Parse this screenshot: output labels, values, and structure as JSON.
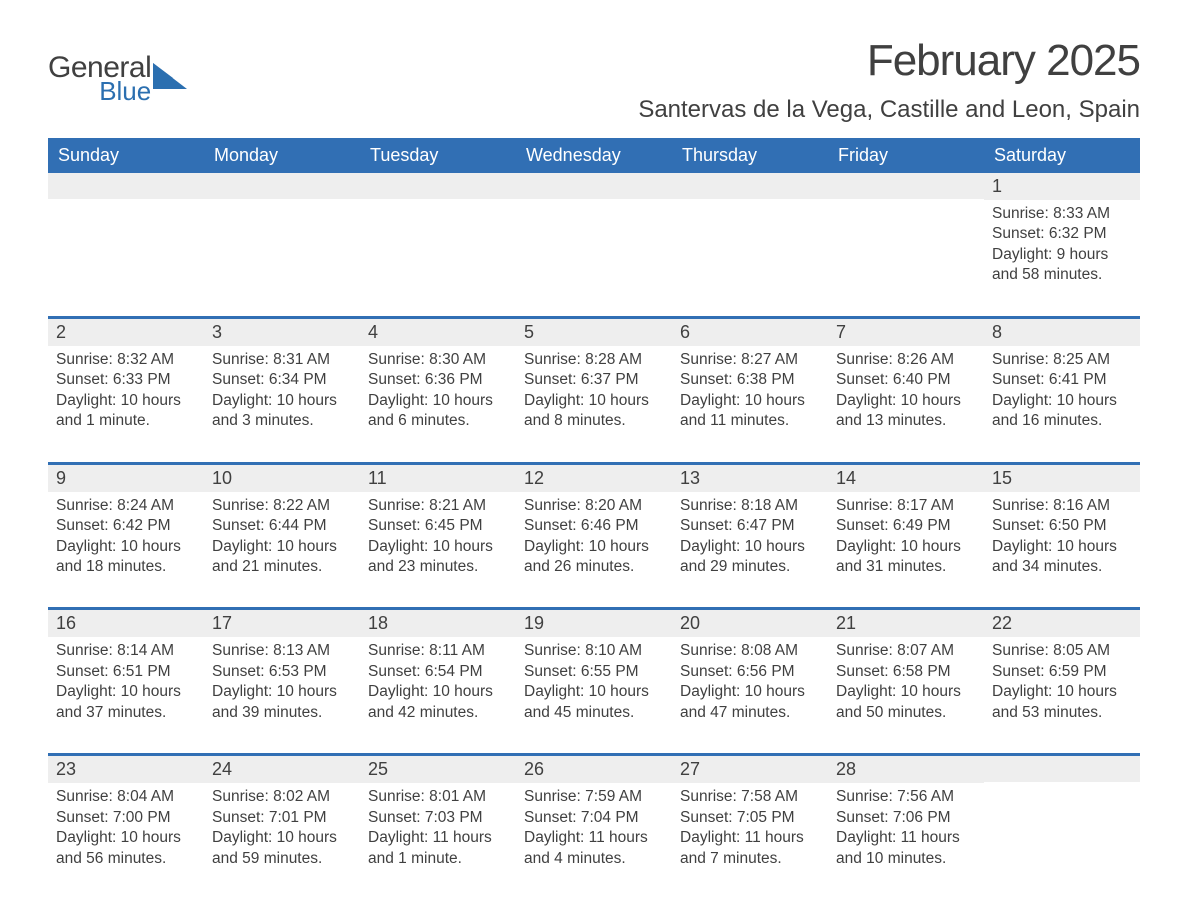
{
  "brand": {
    "general": "General",
    "blue": "Blue",
    "logo_color": "#2b6fb0"
  },
  "title": {
    "month": "February 2025",
    "location": "Santervas de la Vega, Castille and Leon, Spain"
  },
  "styling": {
    "header_bg": "#316fb4",
    "header_text": "#ffffff",
    "daybar_bg": "#eeeeee",
    "week_border": "#316fb4",
    "body_text": "#404040",
    "page_bg": "#ffffff",
    "month_title_fontsize": 44,
    "location_fontsize": 24,
    "weekday_fontsize": 18,
    "daynum_fontsize": 18,
    "cell_fontsize": 15.5
  },
  "weekdays": [
    "Sunday",
    "Monday",
    "Tuesday",
    "Wednesday",
    "Thursday",
    "Friday",
    "Saturday"
  ],
  "weeks": [
    [
      {
        "day": "",
        "sunrise": "",
        "sunset": "",
        "daylight": ""
      },
      {
        "day": "",
        "sunrise": "",
        "sunset": "",
        "daylight": ""
      },
      {
        "day": "",
        "sunrise": "",
        "sunset": "",
        "daylight": ""
      },
      {
        "day": "",
        "sunrise": "",
        "sunset": "",
        "daylight": ""
      },
      {
        "day": "",
        "sunrise": "",
        "sunset": "",
        "daylight": ""
      },
      {
        "day": "",
        "sunrise": "",
        "sunset": "",
        "daylight": ""
      },
      {
        "day": "1",
        "sunrise": "Sunrise: 8:33 AM",
        "sunset": "Sunset: 6:32 PM",
        "daylight": "Daylight: 9 hours and 58 minutes."
      }
    ],
    [
      {
        "day": "2",
        "sunrise": "Sunrise: 8:32 AM",
        "sunset": "Sunset: 6:33 PM",
        "daylight": "Daylight: 10 hours and 1 minute."
      },
      {
        "day": "3",
        "sunrise": "Sunrise: 8:31 AM",
        "sunset": "Sunset: 6:34 PM",
        "daylight": "Daylight: 10 hours and 3 minutes."
      },
      {
        "day": "4",
        "sunrise": "Sunrise: 8:30 AM",
        "sunset": "Sunset: 6:36 PM",
        "daylight": "Daylight: 10 hours and 6 minutes."
      },
      {
        "day": "5",
        "sunrise": "Sunrise: 8:28 AM",
        "sunset": "Sunset: 6:37 PM",
        "daylight": "Daylight: 10 hours and 8 minutes."
      },
      {
        "day": "6",
        "sunrise": "Sunrise: 8:27 AM",
        "sunset": "Sunset: 6:38 PM",
        "daylight": "Daylight: 10 hours and 11 minutes."
      },
      {
        "day": "7",
        "sunrise": "Sunrise: 8:26 AM",
        "sunset": "Sunset: 6:40 PM",
        "daylight": "Daylight: 10 hours and 13 minutes."
      },
      {
        "day": "8",
        "sunrise": "Sunrise: 8:25 AM",
        "sunset": "Sunset: 6:41 PM",
        "daylight": "Daylight: 10 hours and 16 minutes."
      }
    ],
    [
      {
        "day": "9",
        "sunrise": "Sunrise: 8:24 AM",
        "sunset": "Sunset: 6:42 PM",
        "daylight": "Daylight: 10 hours and 18 minutes."
      },
      {
        "day": "10",
        "sunrise": "Sunrise: 8:22 AM",
        "sunset": "Sunset: 6:44 PM",
        "daylight": "Daylight: 10 hours and 21 minutes."
      },
      {
        "day": "11",
        "sunrise": "Sunrise: 8:21 AM",
        "sunset": "Sunset: 6:45 PM",
        "daylight": "Daylight: 10 hours and 23 minutes."
      },
      {
        "day": "12",
        "sunrise": "Sunrise: 8:20 AM",
        "sunset": "Sunset: 6:46 PM",
        "daylight": "Daylight: 10 hours and 26 minutes."
      },
      {
        "day": "13",
        "sunrise": "Sunrise: 8:18 AM",
        "sunset": "Sunset: 6:47 PM",
        "daylight": "Daylight: 10 hours and 29 minutes."
      },
      {
        "day": "14",
        "sunrise": "Sunrise: 8:17 AM",
        "sunset": "Sunset: 6:49 PM",
        "daylight": "Daylight: 10 hours and 31 minutes."
      },
      {
        "day": "15",
        "sunrise": "Sunrise: 8:16 AM",
        "sunset": "Sunset: 6:50 PM",
        "daylight": "Daylight: 10 hours and 34 minutes."
      }
    ],
    [
      {
        "day": "16",
        "sunrise": "Sunrise: 8:14 AM",
        "sunset": "Sunset: 6:51 PM",
        "daylight": "Daylight: 10 hours and 37 minutes."
      },
      {
        "day": "17",
        "sunrise": "Sunrise: 8:13 AM",
        "sunset": "Sunset: 6:53 PM",
        "daylight": "Daylight: 10 hours and 39 minutes."
      },
      {
        "day": "18",
        "sunrise": "Sunrise: 8:11 AM",
        "sunset": "Sunset: 6:54 PM",
        "daylight": "Daylight: 10 hours and 42 minutes."
      },
      {
        "day": "19",
        "sunrise": "Sunrise: 8:10 AM",
        "sunset": "Sunset: 6:55 PM",
        "daylight": "Daylight: 10 hours and 45 minutes."
      },
      {
        "day": "20",
        "sunrise": "Sunrise: 8:08 AM",
        "sunset": "Sunset: 6:56 PM",
        "daylight": "Daylight: 10 hours and 47 minutes."
      },
      {
        "day": "21",
        "sunrise": "Sunrise: 8:07 AM",
        "sunset": "Sunset: 6:58 PM",
        "daylight": "Daylight: 10 hours and 50 minutes."
      },
      {
        "day": "22",
        "sunrise": "Sunrise: 8:05 AM",
        "sunset": "Sunset: 6:59 PM",
        "daylight": "Daylight: 10 hours and 53 minutes."
      }
    ],
    [
      {
        "day": "23",
        "sunrise": "Sunrise: 8:04 AM",
        "sunset": "Sunset: 7:00 PM",
        "daylight": "Daylight: 10 hours and 56 minutes."
      },
      {
        "day": "24",
        "sunrise": "Sunrise: 8:02 AM",
        "sunset": "Sunset: 7:01 PM",
        "daylight": "Daylight: 10 hours and 59 minutes."
      },
      {
        "day": "25",
        "sunrise": "Sunrise: 8:01 AM",
        "sunset": "Sunset: 7:03 PM",
        "daylight": "Daylight: 11 hours and 1 minute."
      },
      {
        "day": "26",
        "sunrise": "Sunrise: 7:59 AM",
        "sunset": "Sunset: 7:04 PM",
        "daylight": "Daylight: 11 hours and 4 minutes."
      },
      {
        "day": "27",
        "sunrise": "Sunrise: 7:58 AM",
        "sunset": "Sunset: 7:05 PM",
        "daylight": "Daylight: 11 hours and 7 minutes."
      },
      {
        "day": "28",
        "sunrise": "Sunrise: 7:56 AM",
        "sunset": "Sunset: 7:06 PM",
        "daylight": "Daylight: 11 hours and 10 minutes."
      },
      {
        "day": "",
        "sunrise": "",
        "sunset": "",
        "daylight": ""
      }
    ]
  ]
}
